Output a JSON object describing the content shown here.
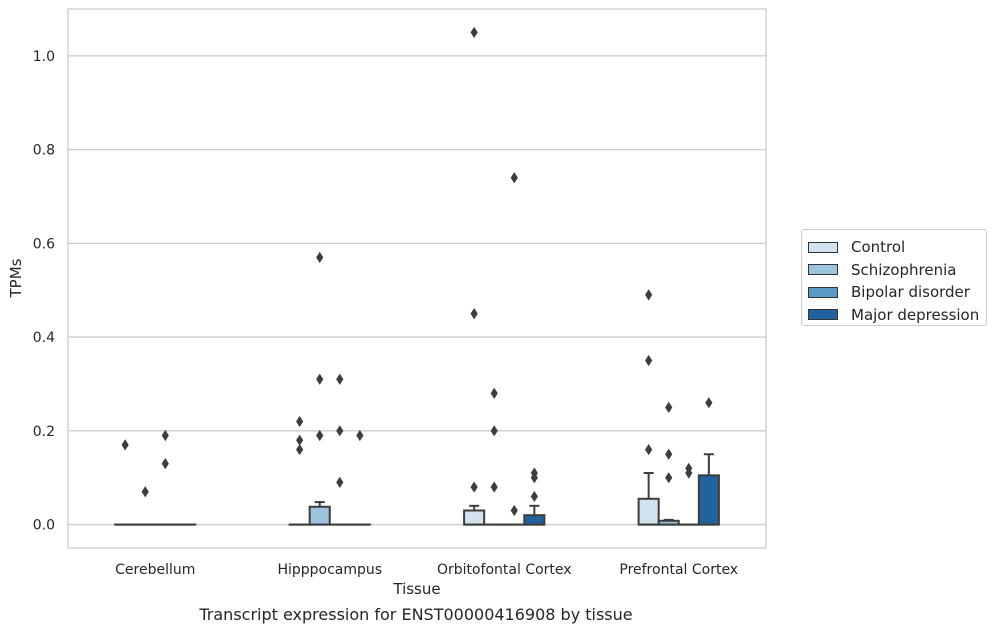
{
  "chart_data": {
    "type": "box",
    "title": "",
    "caption": "Transcript expression for ENST00000416908 by tissue",
    "xlabel": "Tissue",
    "ylabel": "TPMs",
    "ylim": [
      -0.05,
      1.1
    ],
    "yticks": [
      0.0,
      0.2,
      0.4,
      0.6,
      0.8,
      1.0
    ],
    "ytick_labels": [
      "0.0",
      "0.2",
      "0.4",
      "0.6",
      "0.8",
      "1.0"
    ],
    "grid": "horizontal",
    "legend_position": "right",
    "categories": [
      "Cerebellum",
      "Hipppocampus",
      "Orbitofontal Cortex",
      "Prefrontal Cortex"
    ],
    "series": [
      {
        "name": "Control",
        "color": "#d2e2f1",
        "boxes": [
          {
            "q1": 0,
            "median": 0,
            "q3": 0,
            "whisker_low": 0,
            "whisker_high": 0,
            "outliers": [
              0.17
            ]
          },
          {
            "q1": 0,
            "median": 0,
            "q3": 0,
            "whisker_low": 0,
            "whisker_high": 0,
            "outliers": [
              0.22,
              0.18,
              0.16
            ]
          },
          {
            "q1": 0,
            "median": 0,
            "q3": 0.03,
            "whisker_low": 0,
            "whisker_high": 0.04,
            "outliers": [
              1.05,
              0.45,
              0.08
            ]
          },
          {
            "q1": 0,
            "median": 0,
            "q3": 0.055,
            "whisker_low": 0,
            "whisker_high": 0.11,
            "outliers": [
              0.49,
              0.35,
              0.16
            ]
          }
        ]
      },
      {
        "name": "Schizophrenia",
        "color": "#9cc4dd",
        "boxes": [
          {
            "q1": 0,
            "median": 0,
            "q3": 0,
            "whisker_low": 0,
            "whisker_high": 0,
            "outliers": [
              0.07
            ]
          },
          {
            "q1": 0,
            "median": 0,
            "q3": 0.038,
            "whisker_low": 0,
            "whisker_high": 0.048,
            "outliers": [
              0.57,
              0.31,
              0.19
            ]
          },
          {
            "q1": 0,
            "median": 0,
            "q3": 0,
            "whisker_low": 0,
            "whisker_high": 0,
            "outliers": [
              0.28,
              0.2,
              0.08
            ]
          },
          {
            "q1": 0,
            "median": 0,
            "q3": 0.008,
            "whisker_low": 0,
            "whisker_high": 0.01,
            "outliers": [
              0.25,
              0.15,
              0.1
            ]
          }
        ]
      },
      {
        "name": "Bipolar disorder",
        "color": "#5a9bc6",
        "boxes": [
          {
            "q1": 0,
            "median": 0,
            "q3": 0,
            "whisker_low": 0,
            "whisker_high": 0,
            "outliers": [
              0.19,
              0.13
            ]
          },
          {
            "q1": 0,
            "median": 0,
            "q3": 0,
            "whisker_low": 0,
            "whisker_high": 0,
            "outliers": [
              0.31,
              0.2,
              0.09
            ]
          },
          {
            "q1": 0,
            "median": 0,
            "q3": 0,
            "whisker_low": 0,
            "whisker_high": 0,
            "outliers": [
              0.74,
              0.03
            ]
          },
          {
            "q1": 0,
            "median": 0,
            "q3": 0,
            "whisker_low": 0,
            "whisker_high": 0,
            "outliers": [
              0.12,
              0.11
            ]
          }
        ]
      },
      {
        "name": "Major depression",
        "color": "#2362a0",
        "boxes": [
          {
            "q1": 0,
            "median": 0,
            "q3": 0,
            "whisker_low": 0,
            "whisker_high": 0,
            "outliers": []
          },
          {
            "q1": 0,
            "median": 0,
            "q3": 0,
            "whisker_low": 0,
            "whisker_high": 0,
            "outliers": [
              0.19
            ]
          },
          {
            "q1": 0,
            "median": 0,
            "q3": 0.02,
            "whisker_low": 0,
            "whisker_high": 0.04,
            "outliers": [
              0.11,
              0.1,
              0.06
            ]
          },
          {
            "q1": 0,
            "median": 0,
            "q3": 0.105,
            "whisker_low": 0,
            "whisker_high": 0.15,
            "outliers": [
              0.26
            ]
          }
        ]
      }
    ]
  }
}
